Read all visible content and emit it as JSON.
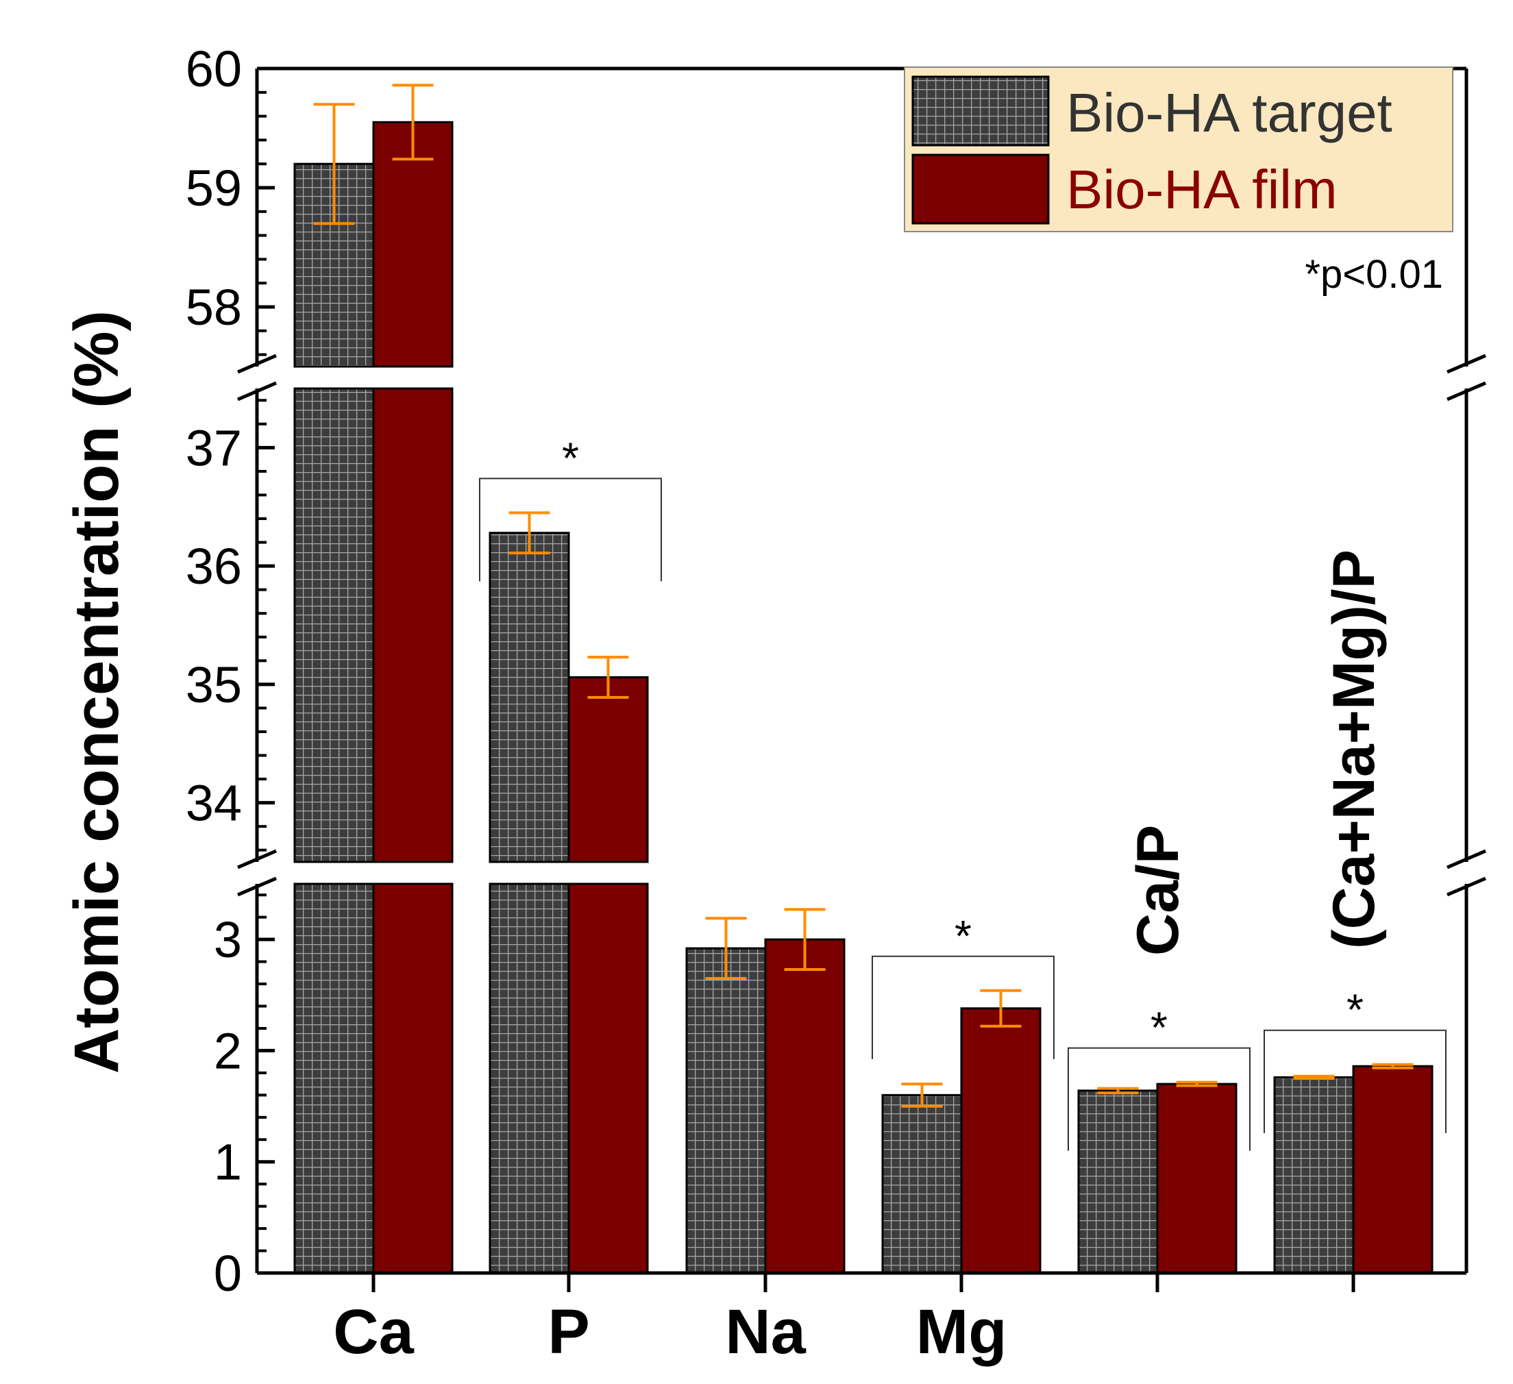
{
  "chart_data": {
    "type": "bar",
    "ylabel": "Atomic concentration (%)",
    "categories": [
      "Ca",
      "P",
      "Na",
      "Mg",
      "Ca/P",
      "(Ca+Na+Mg)/P"
    ],
    "series": [
      {
        "name": "Bio-HA target",
        "values": [
          59.2,
          36.28,
          2.92,
          1.6,
          1.64,
          1.76
        ],
        "errors": [
          0.5,
          0.17,
          0.27,
          0.1,
          0.02,
          0.01
        ]
      },
      {
        "name": "Bio-HA film",
        "values": [
          59.55,
          35.06,
          3.0,
          2.38,
          1.7,
          1.86
        ],
        "errors": [
          0.31,
          0.17,
          0.27,
          0.16,
          0.015,
          0.015
        ]
      }
    ],
    "y_segments": [
      {
        "range": [
          0,
          3.5
        ],
        "ticks": [
          "0",
          "1",
          "2",
          "3"
        ]
      },
      {
        "range": [
          33.5,
          37.5
        ],
        "ticks": [
          "34",
          "35",
          "36",
          "37"
        ]
      },
      {
        "range": [
          57.5,
          60
        ],
        "ticks": [
          "58",
          "59",
          "60"
        ]
      }
    ],
    "significance": [
      {
        "category": "P",
        "label": "*"
      },
      {
        "category": "Mg",
        "label": "*"
      },
      {
        "category": "Ca/P",
        "label": "*"
      },
      {
        "category": "(Ca+Na+Mg)/P",
        "label": "*"
      }
    ],
    "note": "*p<0.01",
    "legend_position": "top-right",
    "colors": {
      "target": "#3d3d3d",
      "film": "#7a0000",
      "error": "#ff8c00",
      "legend_bg": "#fbe8c0"
    }
  }
}
